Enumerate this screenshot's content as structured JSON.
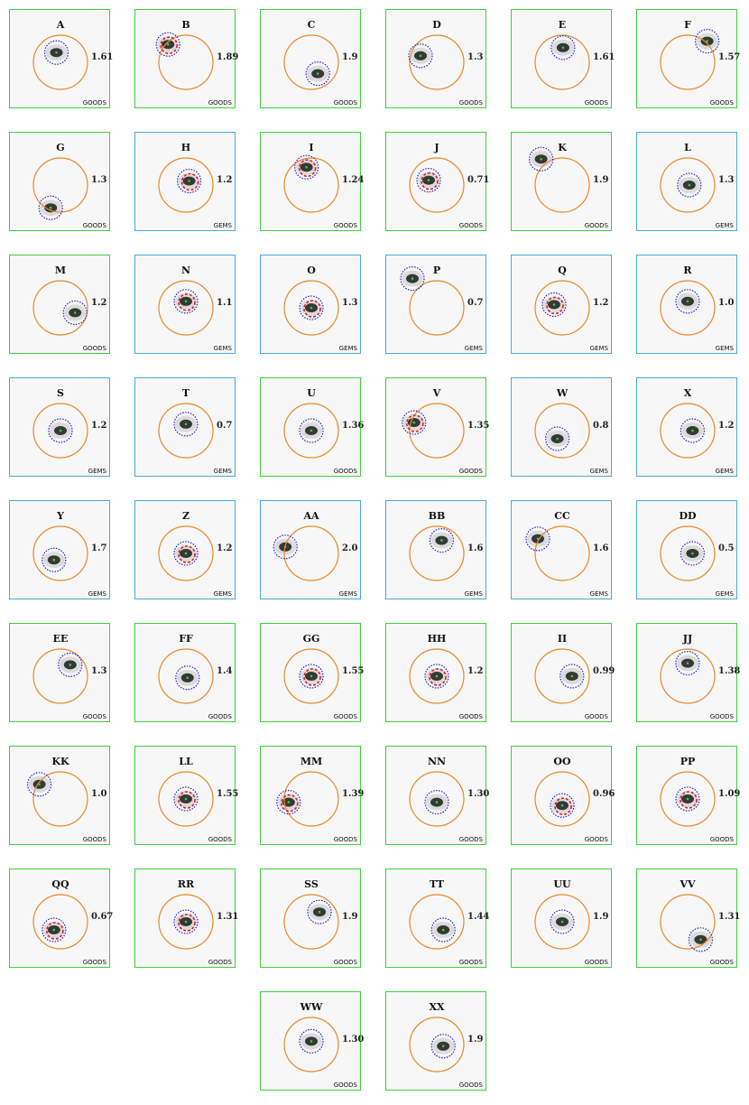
{
  "panels": [
    {
      "label": "A",
      "z": "1.61",
      "survey": "GOODS",
      "red": false
    },
    {
      "label": "B",
      "z": "1.89",
      "survey": "GOODS",
      "red": true
    },
    {
      "label": "C",
      "z": "1.9",
      "survey": "GOODS",
      "red": false
    },
    {
      "label": "D",
      "z": "1.3",
      "survey": "GOODS",
      "red": false
    },
    {
      "label": "E",
      "z": "1.61",
      "survey": "GOODS",
      "red": false
    },
    {
      "label": "F",
      "z": "1.57",
      "survey": "GOODS",
      "red": false
    },
    {
      "label": "G",
      "z": "1.3",
      "survey": "GOODS",
      "red": false
    },
    {
      "label": "H",
      "z": "1.2",
      "survey": "GEMS",
      "red": true
    },
    {
      "label": "I",
      "z": "1.24",
      "survey": "GOODS",
      "red": true
    },
    {
      "label": "J",
      "z": "0.71",
      "survey": "GOODS",
      "red": true
    },
    {
      "label": "K",
      "z": "1.9",
      "survey": "GOODS",
      "red": false
    },
    {
      "label": "L",
      "z": "1.3",
      "survey": "GEMS",
      "red": false
    },
    {
      "label": "M",
      "z": "1.2",
      "survey": "GOODS",
      "red": false
    },
    {
      "label": "N",
      "z": "1.1",
      "survey": "GEMS",
      "red": true
    },
    {
      "label": "O",
      "z": "1.3",
      "survey": "GEMS",
      "red": true
    },
    {
      "label": "P",
      "z": "0.7",
      "survey": "GEMS",
      "red": false
    },
    {
      "label": "Q",
      "z": "1.2",
      "survey": "GEMS",
      "red": true
    },
    {
      "label": "R",
      "z": "1.0",
      "survey": "GEMS",
      "red": false
    },
    {
      "label": "S",
      "z": "1.2",
      "survey": "GEMS",
      "red": false
    },
    {
      "label": "T",
      "z": "0.7",
      "survey": "GEMS",
      "red": false
    },
    {
      "label": "U",
      "z": "1.36",
      "survey": "GOODS",
      "red": false
    },
    {
      "label": "V",
      "z": "1.35",
      "survey": "GOODS",
      "red": true
    },
    {
      "label": "W",
      "z": "0.8",
      "survey": "GEMS",
      "red": false
    },
    {
      "label": "X",
      "z": "1.2",
      "survey": "GEMS",
      "red": false
    },
    {
      "label": "Y",
      "z": "1.7",
      "survey": "GEMS",
      "red": false
    },
    {
      "label": "Z",
      "z": "1.2",
      "survey": "GEMS",
      "red": true
    },
    {
      "label": "AA",
      "z": "2.0",
      "survey": "GEMS",
      "red": false
    },
    {
      "label": "BB",
      "z": "1.6",
      "survey": "GEMS",
      "red": false
    },
    {
      "label": "CC",
      "z": "1.6",
      "survey": "GEMS",
      "red": false
    },
    {
      "label": "DD",
      "z": "0.5",
      "survey": "GEMS",
      "red": false
    },
    {
      "label": "EE",
      "z": "1.3",
      "survey": "GOODS",
      "red": false
    },
    {
      "label": "FF",
      "z": "1.4",
      "survey": "GOODS",
      "red": false
    },
    {
      "label": "GG",
      "z": "1.55",
      "survey": "GOODS",
      "red": true
    },
    {
      "label": "HH",
      "z": "1.2",
      "survey": "GOODS",
      "red": true
    },
    {
      "label": "II",
      "z": "0.99",
      "survey": "GOODS",
      "red": false
    },
    {
      "label": "JJ",
      "z": "1.38",
      "survey": "GOODS",
      "red": false
    },
    {
      "label": "KK",
      "z": "1.0",
      "survey": "GOODS",
      "red": false
    },
    {
      "label": "LL",
      "z": "1.55",
      "survey": "GOODS",
      "red": true
    },
    {
      "label": "MM",
      "z": "1.39",
      "survey": "GOODS",
      "red": true
    },
    {
      "label": "NN",
      "z": "1.30",
      "survey": "GOODS",
      "red": false
    },
    {
      "label": "OO",
      "z": "0.96",
      "survey": "GOODS",
      "red": true
    },
    {
      "label": "PP",
      "z": "1.09",
      "survey": "GOODS",
      "red": true
    },
    {
      "label": "QQ",
      "z": "0.67",
      "survey": "GOODS",
      "red": true
    },
    {
      "label": "RR",
      "z": "1.31",
      "survey": "GOODS",
      "red": true
    },
    {
      "label": "SS",
      "z": "1.9",
      "survey": "GOODS",
      "red": false
    },
    {
      "label": "TT",
      "z": "1.44",
      "survey": "GOODS",
      "red": false
    },
    {
      "label": "UU",
      "z": "1.9",
      "survey": "GOODS",
      "red": false
    },
    {
      "label": "VV",
      "z": "1.31",
      "survey": "GOODS",
      "red": false
    },
    {
      "label": "WW",
      "z": "1.30",
      "survey": "GOODS",
      "red": false
    },
    {
      "label": "XX",
      "z": "1.9",
      "survey": "GOODS",
      "red": false
    }
  ],
  "colors": {
    "goods_border": "#3ecf3e",
    "gems_border": "#4aa8dc",
    "orange_circle": "#e8892a",
    "blue_circle": "#1f1fcf",
    "red_circle": "#e02020"
  }
}
